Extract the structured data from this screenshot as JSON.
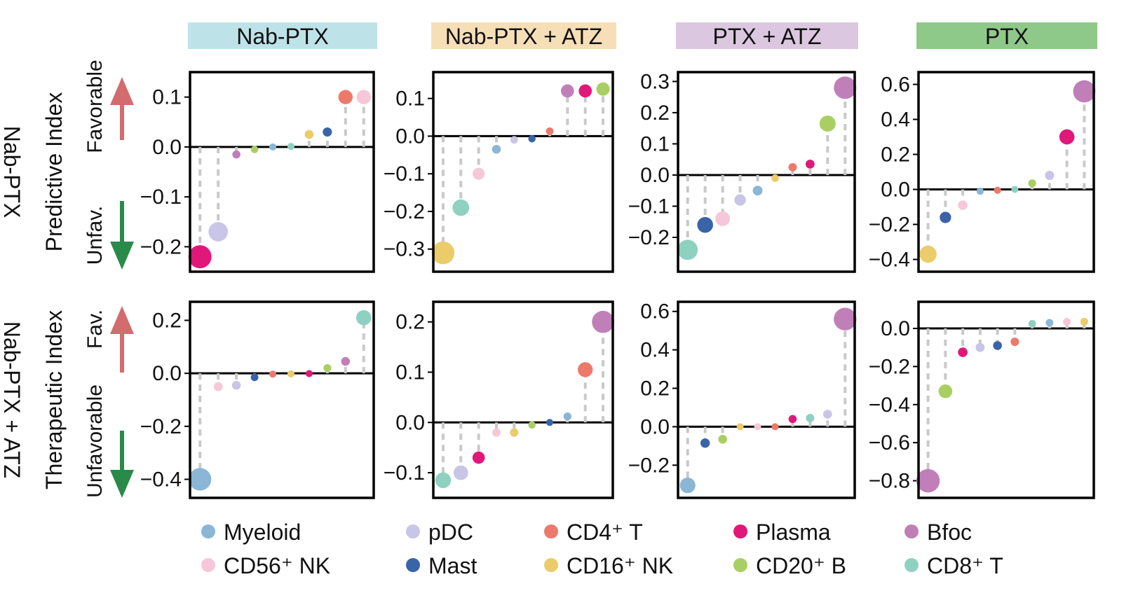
{
  "chart_data": {
    "type": "lollipop-grid",
    "column_headers": [
      {
        "label": "Nab-PTX",
        "color": "#bde3e8"
      },
      {
        "label": "Nab-PTX + ATZ",
        "color": "#f6dfb6"
      },
      {
        "label": "PTX + ATZ",
        "color": "#dcc7e0"
      },
      {
        "label": "PTX",
        "color": "#8fc98a"
      }
    ],
    "row_labels": [
      {
        "outer": "Nab-PTX",
        "title": "Predictive Index",
        "fav": "Favorable",
        "unfav": "Unfav."
      },
      {
        "outer": "Nab-PTX + ATZ",
        "title": "Therapeutic Index",
        "fav": "Fav.",
        "unfav": "Unfavorable"
      }
    ],
    "legend": [
      {
        "label": "Myeloid",
        "color": "#8bb6d6"
      },
      {
        "label": "pDC",
        "color": "#c9c5e6"
      },
      {
        "label": "CD4⁺ T",
        "color": "#ec7a6b"
      },
      {
        "label": "Plasma",
        "color": "#e0187a"
      },
      {
        "label": "Bfoc",
        "color": "#c07fb9"
      },
      {
        "label": "CD56⁺ NK",
        "color": "#f6c7d8"
      },
      {
        "label": "Mast",
        "color": "#3a64a8"
      },
      {
        "label": "CD16⁺ NK",
        "color": "#ebcb6a"
      },
      {
        "label": "CD20⁺ B",
        "color": "#a9cf63"
      },
      {
        "label": "CD8⁺ T",
        "color": "#8fd1c1"
      }
    ],
    "panels": [
      {
        "row": 0,
        "col": 0,
        "ylim": [
          -0.25,
          0.15
        ],
        "ticks": [
          "0.1",
          "0.0",
          "−0.1",
          "−0.2"
        ],
        "tick_values": [
          0.1,
          0.0,
          -0.1,
          -0.2
        ],
        "points": [
          {
            "cell": "Plasma",
            "value": -0.22
          },
          {
            "cell": "pDC",
            "value": -0.17
          },
          {
            "cell": "Bfoc",
            "value": -0.015
          },
          {
            "cell": "CD20⁺ B",
            "value": -0.005
          },
          {
            "cell": "Myeloid",
            "value": 0.0
          },
          {
            "cell": "CD8⁺ T",
            "value": 0.001
          },
          {
            "cell": "CD16⁺ NK",
            "value": 0.025
          },
          {
            "cell": "Mast",
            "value": 0.03
          },
          {
            "cell": "CD4⁺ T",
            "value": 0.1
          },
          {
            "cell": "CD56⁺ NK",
            "value": 0.1
          }
        ]
      },
      {
        "row": 0,
        "col": 1,
        "ylim": [
          -0.36,
          0.17
        ],
        "ticks": [
          "0.1",
          "0.0",
          "−0.1",
          "−0.2",
          "−0.3"
        ],
        "tick_values": [
          0.1,
          0.0,
          -0.1,
          -0.2,
          -0.3
        ],
        "points": [
          {
            "cell": "CD16⁺ NK",
            "value": -0.31
          },
          {
            "cell": "CD8⁺ T",
            "value": -0.19
          },
          {
            "cell": "CD56⁺ NK",
            "value": -0.1
          },
          {
            "cell": "Myeloid",
            "value": -0.035
          },
          {
            "cell": "pDC",
            "value": -0.01
          },
          {
            "cell": "Mast",
            "value": -0.007
          },
          {
            "cell": "CD4⁺ T",
            "value": 0.013
          },
          {
            "cell": "Bfoc",
            "value": 0.12
          },
          {
            "cell": "Plasma",
            "value": 0.12
          },
          {
            "cell": "CD20⁺ B",
            "value": 0.125
          }
        ]
      },
      {
        "row": 0,
        "col": 2,
        "ylim": [
          -0.31,
          0.33
        ],
        "ticks": [
          "0.3",
          "0.2",
          "0.1",
          "0.0",
          "−0.1",
          "−0.2"
        ],
        "tick_values": [
          0.3,
          0.2,
          0.1,
          0.0,
          -0.1,
          -0.2
        ],
        "points": [
          {
            "cell": "CD8⁺ T",
            "value": -0.24
          },
          {
            "cell": "Mast",
            "value": -0.16
          },
          {
            "cell": "CD56⁺ NK",
            "value": -0.14
          },
          {
            "cell": "pDC",
            "value": -0.08
          },
          {
            "cell": "Myeloid",
            "value": -0.05
          },
          {
            "cell": "CD16⁺ NK",
            "value": -0.01
          },
          {
            "cell": "CD4⁺ T",
            "value": 0.025
          },
          {
            "cell": "Plasma",
            "value": 0.035
          },
          {
            "cell": "CD20⁺ B",
            "value": 0.165
          },
          {
            "cell": "Bfoc",
            "value": 0.28
          }
        ]
      },
      {
        "row": 0,
        "col": 3,
        "ylim": [
          -0.47,
          0.67
        ],
        "ticks": [
          "0.6",
          "0.4",
          "0.2",
          "0.0",
          "−0.2",
          "−0.4"
        ],
        "tick_values": [
          0.6,
          0.4,
          0.2,
          0.0,
          -0.2,
          -0.4
        ],
        "points": [
          {
            "cell": "CD16⁺ NK",
            "value": -0.37
          },
          {
            "cell": "Mast",
            "value": -0.16
          },
          {
            "cell": "CD56⁺ NK",
            "value": -0.09
          },
          {
            "cell": "Myeloid",
            "value": -0.01
          },
          {
            "cell": "CD4⁺ T",
            "value": -0.005
          },
          {
            "cell": "CD8⁺ T",
            "value": 0.0
          },
          {
            "cell": "CD20⁺ B",
            "value": 0.035
          },
          {
            "cell": "pDC",
            "value": 0.08
          },
          {
            "cell": "Plasma",
            "value": 0.3
          },
          {
            "cell": "Bfoc",
            "value": 0.56
          }
        ]
      },
      {
        "row": 1,
        "col": 0,
        "ylim": [
          -0.47,
          0.27
        ],
        "ticks": [
          "0.2",
          "0.0",
          "−0.2",
          "−0.4"
        ],
        "tick_values": [
          0.2,
          0.0,
          -0.2,
          -0.4
        ],
        "points": [
          {
            "cell": "Myeloid",
            "value": -0.4
          },
          {
            "cell": "CD56⁺ NK",
            "value": -0.05
          },
          {
            "cell": "pDC",
            "value": -0.045
          },
          {
            "cell": "Mast",
            "value": -0.015
          },
          {
            "cell": "CD4⁺ T",
            "value": -0.003
          },
          {
            "cell": "CD16⁺ NK",
            "value": -0.002
          },
          {
            "cell": "Plasma",
            "value": -0.001
          },
          {
            "cell": "CD20⁺ B",
            "value": 0.02
          },
          {
            "cell": "Bfoc",
            "value": 0.045
          },
          {
            "cell": "CD8⁺ T",
            "value": 0.21
          }
        ]
      },
      {
        "row": 1,
        "col": 1,
        "ylim": [
          -0.15,
          0.24
        ],
        "ticks": [
          "0.2",
          "0.1",
          "0.0",
          "−0.1"
        ],
        "tick_values": [
          0.2,
          0.1,
          0.0,
          -0.1
        ],
        "points": [
          {
            "cell": "CD8⁺ T",
            "value": -0.115
          },
          {
            "cell": "pDC",
            "value": -0.1
          },
          {
            "cell": "Plasma",
            "value": -0.07
          },
          {
            "cell": "CD56⁺ NK",
            "value": -0.02
          },
          {
            "cell": "CD16⁺ NK",
            "value": -0.02
          },
          {
            "cell": "CD20⁺ B",
            "value": -0.005
          },
          {
            "cell": "Mast",
            "value": 0.0
          },
          {
            "cell": "Myeloid",
            "value": 0.012
          },
          {
            "cell": "CD4⁺ T",
            "value": 0.105
          },
          {
            "cell": "Bfoc",
            "value": 0.2
          }
        ]
      },
      {
        "row": 1,
        "col": 2,
        "ylim": [
          -0.37,
          0.65
        ],
        "ticks": [
          "0.6",
          "0.4",
          "0.2",
          "0.0",
          "−0.2"
        ],
        "tick_values": [
          0.6,
          0.4,
          0.2,
          0.0,
          -0.2
        ],
        "points": [
          {
            "cell": "Myeloid",
            "value": -0.305
          },
          {
            "cell": "Mast",
            "value": -0.085
          },
          {
            "cell": "CD20⁺ B",
            "value": -0.065
          },
          {
            "cell": "CD16⁺ NK",
            "value": 0.0
          },
          {
            "cell": "CD56⁺ NK",
            "value": 0.0
          },
          {
            "cell": "CD4⁺ T",
            "value": 0.0
          },
          {
            "cell": "Plasma",
            "value": 0.04
          },
          {
            "cell": "CD8⁺ T",
            "value": 0.045
          },
          {
            "cell": "pDC",
            "value": 0.065
          },
          {
            "cell": "Bfoc",
            "value": 0.56
          }
        ]
      },
      {
        "row": 1,
        "col": 3,
        "ylim": [
          -0.89,
          0.14
        ],
        "ticks": [
          "0.0",
          "−0.2",
          "−0.4",
          "−0.6",
          "−0.8"
        ],
        "tick_values": [
          0.0,
          -0.2,
          -0.4,
          -0.6,
          -0.8
        ],
        "points": [
          {
            "cell": "Bfoc",
            "value": -0.8
          },
          {
            "cell": "CD20⁺ B",
            "value": -0.33
          },
          {
            "cell": "Plasma",
            "value": -0.125
          },
          {
            "cell": "pDC",
            "value": -0.1
          },
          {
            "cell": "Mast",
            "value": -0.09
          },
          {
            "cell": "CD4⁺ T",
            "value": -0.07
          },
          {
            "cell": "CD8⁺ T",
            "value": 0.025
          },
          {
            "cell": "Myeloid",
            "value": 0.03
          },
          {
            "cell": "CD56⁺ NK",
            "value": 0.035
          },
          {
            "cell": "CD16⁺ NK",
            "value": 0.035
          }
        ]
      }
    ]
  }
}
